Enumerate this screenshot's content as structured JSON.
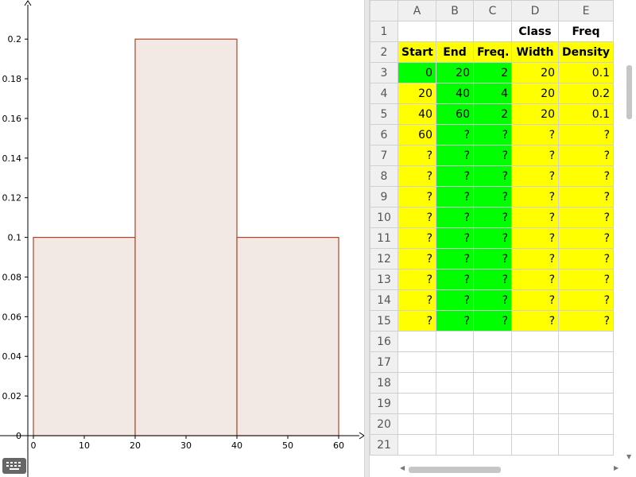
{
  "colors": {
    "bar_fill": "#f3e9e4",
    "bar_stroke": "#b0452a",
    "yellow": "#ffff00",
    "green": "#00ff00"
  },
  "chart_data": {
    "type": "bar",
    "bins": [
      {
        "start": 0,
        "end": 20,
        "value": 0.1
      },
      {
        "start": 20,
        "end": 40,
        "value": 0.2
      },
      {
        "start": 40,
        "end": 60,
        "value": 0.1
      }
    ],
    "xlim": [
      0,
      60
    ],
    "ylim": [
      0,
      0.2
    ],
    "xticks": [
      "0",
      "10",
      "20",
      "30",
      "40",
      "50",
      "60"
    ],
    "yticks": [
      "0",
      "0.02",
      "0.04",
      "0.06",
      "0.08",
      "0.1",
      "0.12",
      "0.14",
      "0.16",
      "0.18",
      "0.2"
    ],
    "grid": false
  },
  "spreadsheet": {
    "columns": [
      "A",
      "B",
      "C",
      "D",
      "E"
    ],
    "row_numbers": [
      "1",
      "2",
      "3",
      "4",
      "5",
      "6",
      "7",
      "8",
      "9",
      "10",
      "11",
      "12",
      "13",
      "14",
      "15",
      "16",
      "17",
      "18",
      "19",
      "20",
      "21"
    ],
    "rows": [
      [
        "",
        "",
        "",
        "Class",
        "Freq"
      ],
      [
        "Start",
        "End",
        "Freq.",
        "Width",
        "Density"
      ],
      [
        "0",
        "20",
        "2",
        "20",
        "0.1"
      ],
      [
        "20",
        "40",
        "4",
        "20",
        "0.2"
      ],
      [
        "40",
        "60",
        "2",
        "20",
        "0.1"
      ],
      [
        "60",
        "?",
        "?",
        "?",
        "?"
      ],
      [
        "?",
        "?",
        "?",
        "?",
        "?"
      ],
      [
        "?",
        "?",
        "?",
        "?",
        "?"
      ],
      [
        "?",
        "?",
        "?",
        "?",
        "?"
      ],
      [
        "?",
        "?",
        "?",
        "?",
        "?"
      ],
      [
        "?",
        "?",
        "?",
        "?",
        "?"
      ],
      [
        "?",
        "?",
        "?",
        "?",
        "?"
      ],
      [
        "?",
        "?",
        "?",
        "?",
        "?"
      ],
      [
        "?",
        "?",
        "?",
        "?",
        "?"
      ],
      [
        "?",
        "?",
        "?",
        "?",
        "?"
      ],
      [
        "",
        "",
        "",
        "",
        ""
      ],
      [
        "",
        "",
        "",
        "",
        ""
      ],
      [
        "",
        "",
        "",
        "",
        ""
      ],
      [
        "",
        "",
        "",
        "",
        ""
      ],
      [
        "",
        "",
        "",
        "",
        ""
      ],
      [
        "",
        "",
        "",
        "",
        ""
      ]
    ]
  }
}
